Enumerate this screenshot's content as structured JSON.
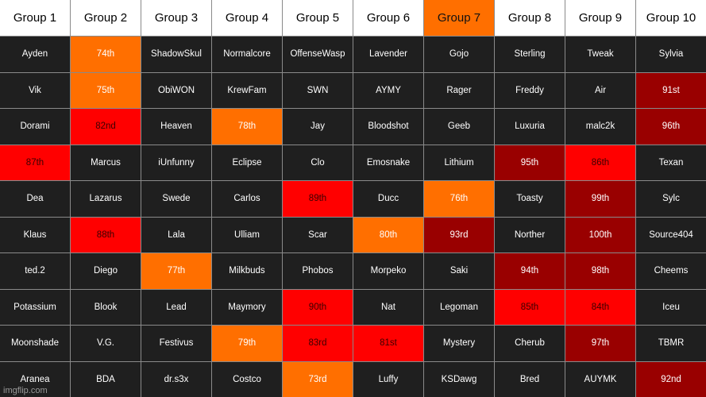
{
  "colors": {
    "dark": "#1f1f1f",
    "orange": "#ff6f00",
    "red": "#ff0000",
    "darkred": "#990000",
    "header": "#ffffff",
    "grid_line": "#8a8a8a"
  },
  "headers": [
    {
      "label": "Group 1",
      "color": "header"
    },
    {
      "label": "Group 2",
      "color": "header"
    },
    {
      "label": "Group 3",
      "color": "header"
    },
    {
      "label": "Group 4",
      "color": "header"
    },
    {
      "label": "Group 5",
      "color": "header"
    },
    {
      "label": "Group 6",
      "color": "header"
    },
    {
      "label": "Group 7",
      "color": "orange"
    },
    {
      "label": "Group 8",
      "color": "header"
    },
    {
      "label": "Group 9",
      "color": "header"
    },
    {
      "label": "Group 10",
      "color": "header"
    }
  ],
  "rows": [
    [
      {
        "text": "Ayden",
        "color": "dark"
      },
      {
        "text": "74th",
        "color": "orange"
      },
      {
        "text": "ShadowSkul",
        "color": "dark"
      },
      {
        "text": "Normalcore",
        "color": "dark"
      },
      {
        "text": "OffenseWasp",
        "color": "dark"
      },
      {
        "text": "Lavender",
        "color": "dark"
      },
      {
        "text": "Gojo",
        "color": "dark"
      },
      {
        "text": "Sterling",
        "color": "dark"
      },
      {
        "text": "Tweak",
        "color": "dark"
      },
      {
        "text": "Sylvia",
        "color": "dark"
      }
    ],
    [
      {
        "text": "Vik",
        "color": "dark"
      },
      {
        "text": "75th",
        "color": "orange"
      },
      {
        "text": "ObiWON",
        "color": "dark"
      },
      {
        "text": "KrewFam",
        "color": "dark"
      },
      {
        "text": "SWN",
        "color": "dark"
      },
      {
        "text": "AYMY",
        "color": "dark"
      },
      {
        "text": "Rager",
        "color": "dark"
      },
      {
        "text": "Freddy",
        "color": "dark"
      },
      {
        "text": "Air",
        "color": "dark"
      },
      {
        "text": "91st",
        "color": "darkred"
      }
    ],
    [
      {
        "text": "Dorami",
        "color": "dark"
      },
      {
        "text": "82nd",
        "color": "red"
      },
      {
        "text": "Heaven",
        "color": "dark"
      },
      {
        "text": "78th",
        "color": "orange"
      },
      {
        "text": "Jay",
        "color": "dark"
      },
      {
        "text": "Bloodshot",
        "color": "dark"
      },
      {
        "text": "Geeb",
        "color": "dark"
      },
      {
        "text": "Luxuria",
        "color": "dark"
      },
      {
        "text": "malc2k",
        "color": "dark"
      },
      {
        "text": "96th",
        "color": "darkred"
      }
    ],
    [
      {
        "text": "87th",
        "color": "red"
      },
      {
        "text": "Marcus",
        "color": "dark"
      },
      {
        "text": "iUnfunny",
        "color": "dark"
      },
      {
        "text": "Eclipse",
        "color": "dark"
      },
      {
        "text": "Clo",
        "color": "dark"
      },
      {
        "text": "Emosnake",
        "color": "dark"
      },
      {
        "text": "Lithium",
        "color": "dark"
      },
      {
        "text": "95th",
        "color": "darkred"
      },
      {
        "text": "86th",
        "color": "red"
      },
      {
        "text": "Texan",
        "color": "dark"
      }
    ],
    [
      {
        "text": "Dea",
        "color": "dark"
      },
      {
        "text": "Lazarus",
        "color": "dark"
      },
      {
        "text": "Swede",
        "color": "dark"
      },
      {
        "text": "Carlos",
        "color": "dark"
      },
      {
        "text": "89th",
        "color": "red"
      },
      {
        "text": "Ducc",
        "color": "dark"
      },
      {
        "text": "76th",
        "color": "orange"
      },
      {
        "text": "Toasty",
        "color": "dark"
      },
      {
        "text": "99th",
        "color": "darkred"
      },
      {
        "text": "Sylc",
        "color": "dark"
      }
    ],
    [
      {
        "text": "Klaus",
        "color": "dark"
      },
      {
        "text": "88th",
        "color": "red"
      },
      {
        "text": "Lala",
        "color": "dark"
      },
      {
        "text": "Ulliam",
        "color": "dark"
      },
      {
        "text": "Scar",
        "color": "dark"
      },
      {
        "text": "80th",
        "color": "orange"
      },
      {
        "text": "93rd",
        "color": "darkred"
      },
      {
        "text": "Norther",
        "color": "dark"
      },
      {
        "text": "100th",
        "color": "darkred"
      },
      {
        "text": "Source404",
        "color": "dark"
      }
    ],
    [
      {
        "text": "ted.2",
        "color": "dark"
      },
      {
        "text": "Diego",
        "color": "dark"
      },
      {
        "text": "77th",
        "color": "orange"
      },
      {
        "text": "Milkbuds",
        "color": "dark"
      },
      {
        "text": "Phobos",
        "color": "dark"
      },
      {
        "text": "Morpeko",
        "color": "dark"
      },
      {
        "text": "Saki",
        "color": "dark"
      },
      {
        "text": "94th",
        "color": "darkred"
      },
      {
        "text": "98th",
        "color": "darkred"
      },
      {
        "text": "Cheems",
        "color": "dark"
      }
    ],
    [
      {
        "text": "Potassium",
        "color": "dark"
      },
      {
        "text": "Blook",
        "color": "dark"
      },
      {
        "text": "Lead",
        "color": "dark"
      },
      {
        "text": "Maymory",
        "color": "dark"
      },
      {
        "text": "90th",
        "color": "red"
      },
      {
        "text": "Nat",
        "color": "dark"
      },
      {
        "text": "Legoman",
        "color": "dark"
      },
      {
        "text": "85th",
        "color": "red"
      },
      {
        "text": "84th",
        "color": "red"
      },
      {
        "text": "Iceu",
        "color": "dark"
      }
    ],
    [
      {
        "text": "Moonshade",
        "color": "dark"
      },
      {
        "text": "V.G.",
        "color": "dark"
      },
      {
        "text": "Festivus",
        "color": "dark"
      },
      {
        "text": "79th",
        "color": "orange"
      },
      {
        "text": "83rd",
        "color": "red"
      },
      {
        "text": "81st",
        "color": "red"
      },
      {
        "text": "Mystery",
        "color": "dark"
      },
      {
        "text": "Cherub",
        "color": "dark"
      },
      {
        "text": "97th",
        "color": "darkred"
      },
      {
        "text": "TBMR",
        "color": "dark"
      }
    ],
    [
      {
        "text": "Aranea",
        "color": "dark"
      },
      {
        "text": "BDA",
        "color": "dark"
      },
      {
        "text": "dr.s3x",
        "color": "dark"
      },
      {
        "text": "Costco",
        "color": "dark"
      },
      {
        "text": "73rd",
        "color": "orange"
      },
      {
        "text": "Luffy",
        "color": "dark"
      },
      {
        "text": "KSDawg",
        "color": "dark"
      },
      {
        "text": "Bred",
        "color": "dark"
      },
      {
        "text": "AUYMK",
        "color": "dark"
      },
      {
        "text": "92nd",
        "color": "darkred"
      }
    ]
  ],
  "watermark": "imgflip.com"
}
